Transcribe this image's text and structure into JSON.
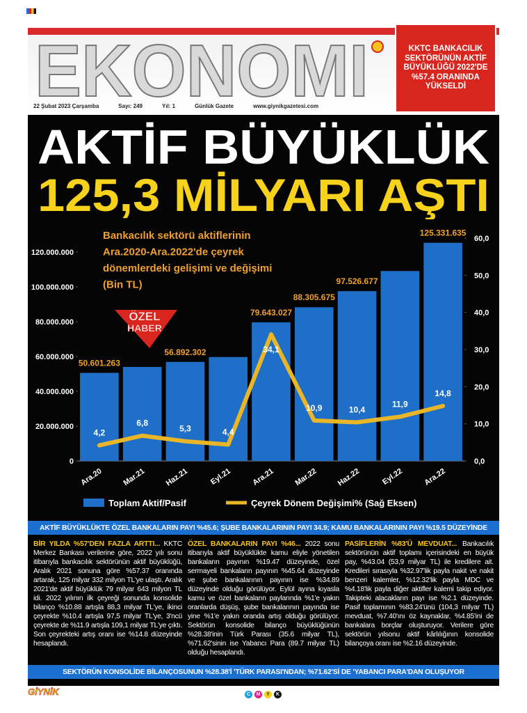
{
  "masthead": {
    "title": "EKONOMI",
    "date": "22 Şubat 2023 Çarşamba",
    "issue": "Sayı: 249",
    "year": "Yıl: 1",
    "frequency": "Günlük Gazete",
    "website": "www.giynikgazetesi.com"
  },
  "red_box": "KKTC BANKACILIK SEKTÖRÜNÜN AKTİF BÜYÜKLÜĞÜ 2022'DE %57.4 ORANINDA YÜKSELDİ",
  "headline": [
    "AKTİF BÜYÜKLÜK",
    "125,3 MİLYARI AŞTI"
  ],
  "chart": {
    "type": "bar",
    "title_lines": [
      "Bankacılık sektörü aktiflerinin",
      "Ara.2020-Ara.2022'de çeyrek",
      "dönemlerdeki gelişimi ve değişimi",
      "(Bin TL)"
    ],
    "badge": [
      "ÖZEL",
      "HABER"
    ],
    "categories": [
      "Ara.20",
      "Mar.21",
      "Haz.21",
      "Eyl.21",
      "Ara.21",
      "Mar.22",
      "Haz.22",
      "Eyl.22",
      "Ara.22"
    ],
    "series": [
      {
        "name": "Toplam Aktif/Pasif",
        "color": "#1f6fc8",
        "type": "bar",
        "values": [
          50601263,
          54000000,
          56892302,
          59700000,
          79643027,
          88305675,
          97526677,
          109100000,
          125331635
        ],
        "value_labels": [
          "50.601.263",
          null,
          "56.892.302",
          null,
          "79.643.027",
          "88.305.675",
          "97.526.677",
          null,
          "125.331.635"
        ]
      },
      {
        "name": "Çeyrek Dönem Değişimi%  (Sağ Eksen)",
        "color": "#e8b626",
        "type": "line",
        "axis": "y2",
        "values": [
          4.2,
          6.8,
          5.3,
          4.4,
          34.1,
          10.9,
          10.4,
          11.9,
          14.8
        ],
        "value_labels": [
          "4,2",
          "6,8",
          "5,3",
          "4,4",
          "34,1",
          "10,9",
          "10,4",
          "11,9",
          "14,8"
        ]
      }
    ],
    "ylim": [
      0,
      128000000
    ],
    "yticks": [
      0,
      {
        "value": 20000000,
        "label": "20.000.000"
      },
      {
        "value": 40000000,
        "label": "40.000.000"
      },
      {
        "value": 60000000,
        "label": "60.000.000"
      },
      {
        "value": 80000000,
        "label": "80.000.000"
      },
      {
        "value": 100000000,
        "label": "100.000.000"
      },
      {
        "value": 120000000,
        "label": "120.000.000"
      }
    ],
    "y2lim": [
      0,
      60
    ],
    "y2ticks": [
      {
        "value": 0,
        "label": "0,0"
      },
      {
        "value": 10,
        "label": "10,0"
      },
      {
        "value": 20,
        "label": "20,0"
      },
      {
        "value": 30,
        "label": "30,0"
      },
      {
        "value": 40,
        "label": "40,0"
      },
      {
        "value": 50,
        "label": "50,0"
      },
      {
        "value": 60,
        "label": "60,0"
      }
    ],
    "grid": false
  },
  "banners": [
    "AKTİF BÜYÜKLÜKTE ÖZEL BANKALARIN PAYI %45.6; ŞUBE BANKALARININ PAYI 34.9; KAMU BANKALARININ PAYI %19.5 DÜZEYİNDE",
    "SEKTÖRÜN KONSOLİDE BİLANÇOSUNUN %28.38'İ 'TÜRK PARASI'NDAN; %71.62'Sİ DE 'YABANCI PARA'DAN OLUŞUYOR"
  ],
  "columns": [
    {
      "heading": "BİR YILDA %57'DEN FAZLA ARTTI...",
      "body": "KKTC Merkez Bankası verilerine göre, 2022 yılı sonu itibarıyla bankacılık sektörünün aktif büyüklüğü, Aralık 2021 sonuna göre %57.37 oranında artarak, 125 milyar 332 milyon TL'ye ulaştı. Aralık 2021'de aktif büyüklük 79 milyar 643 milyon TL idi. 2022 yılının ilk çeyreği sonunda konsolide bilanço %10.88 artışla 88,3 milyar TL'ye, ikinci çeyrekte %10.4 artışla 97,5 milyar TL'ye, 3'ncü çeyrekte de %11.9 artışla 109,1 milyar TL'ye çıktı. Son çeyrekteki artış oranı ise %14.8 düzeyinde hesaplandı."
    },
    {
      "heading": "ÖZEL BANKALARIN PAYI %46...",
      "body": "2022 sonu itibarıyla aktif büyüklükte kamu eliyle yönetilen bankaların payının %19.47 düzeyinde, özel sermayeli bankaların payının %45.64 düzeyinde ve şube bankalarının payının ise %34.89 düzeyinde olduğu görülüyor. Eylül ayına kıyasla kamu ve özel bankaların paylarında %1'e yakın oranlarda düşüş, şube bankalarının payında ise yine %1'e yakın oranda artış olduğu görülüyor. Sektörün konsolide bilanço büyüklüğünün %28.38'inin Türk Parası (35.6 milyar TL), %71.62'sinin ise Yabancı Para (89.7 milyar TL) olduğu hesaplandı."
    },
    {
      "heading": "PASİFLERİN %83'Ü MEVDUAT...",
      "body": "Bankacılık sektörünün aktif toplamı içerisindeki en büyük pay, %43.04 (53,9 milyar TL) ile kredilere ait. Kredileri sırasıyla %32.97'lik payla nakit ve nakit benzeri kalemler, %12.32'lik payla MDC ve %4.18'lik payla diğer aktifler kalemi takip ediyor. Takipteki alacakların payı ise %2.1 düzeyinde. Pasif toplamının %83.24'ünü (104,3 milyar TL) mevduat, %7.40'ını öz kaynaklar, %4.85'ini de bankalara borçlar oluşturuyor. Verilere göre sektörün yılsonu aktif kârlılığının konsolide bilançoya oranı ise %2.16 düzeyinde."
    }
  ],
  "footer": {
    "logo": "GİYNİK",
    "cmyk": [
      "C",
      "M",
      "Y",
      "K"
    ]
  }
}
